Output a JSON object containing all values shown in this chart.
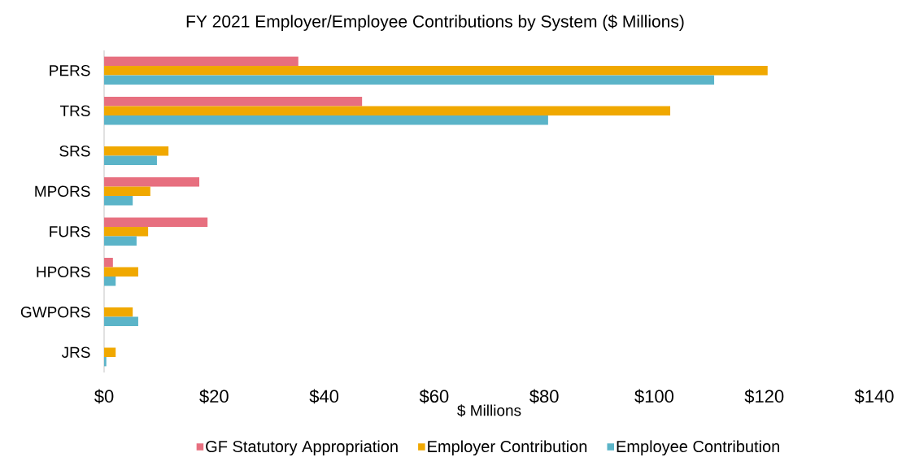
{
  "chart_data": {
    "type": "bar",
    "orientation": "horizontal",
    "title": "FY 2021  Employer/Employee Contributions by System ($ Millions)",
    "xlabel": "$ Millions",
    "categories": [
      "PERS",
      "TRS",
      "SRS",
      "MPORS",
      "FURS",
      "HPORS",
      "GWPORS",
      "JRS"
    ],
    "series": [
      {
        "name": "GF Statutory Appropriation",
        "color": "#e76f7f",
        "values": [
          35.3,
          46.9,
          null,
          17.3,
          18.8,
          1.6,
          null,
          null
        ]
      },
      {
        "name": "Employer Contribution",
        "color": "#f0a800",
        "values": [
          120.6,
          102.9,
          11.7,
          8.4,
          8.0,
          6.2,
          5.2,
          2.1
        ]
      },
      {
        "name": "Employee Contribution",
        "color": "#5bb4c8",
        "values": [
          110.9,
          80.7,
          9.6,
          5.2,
          5.9,
          2.1,
          6.2,
          0.4
        ]
      }
    ],
    "xlim": [
      0,
      140
    ],
    "xticks": [
      {
        "value": 0,
        "label": "$0"
      },
      {
        "value": 20,
        "label": "$20"
      },
      {
        "value": 40,
        "label": "$40"
      },
      {
        "value": 60,
        "label": "$60"
      },
      {
        "value": 80,
        "label": "$80"
      },
      {
        "value": 100,
        "label": "$100"
      },
      {
        "value": 120,
        "label": "$120"
      },
      {
        "value": 140,
        "label": "$140"
      }
    ],
    "legend": "bottom"
  }
}
